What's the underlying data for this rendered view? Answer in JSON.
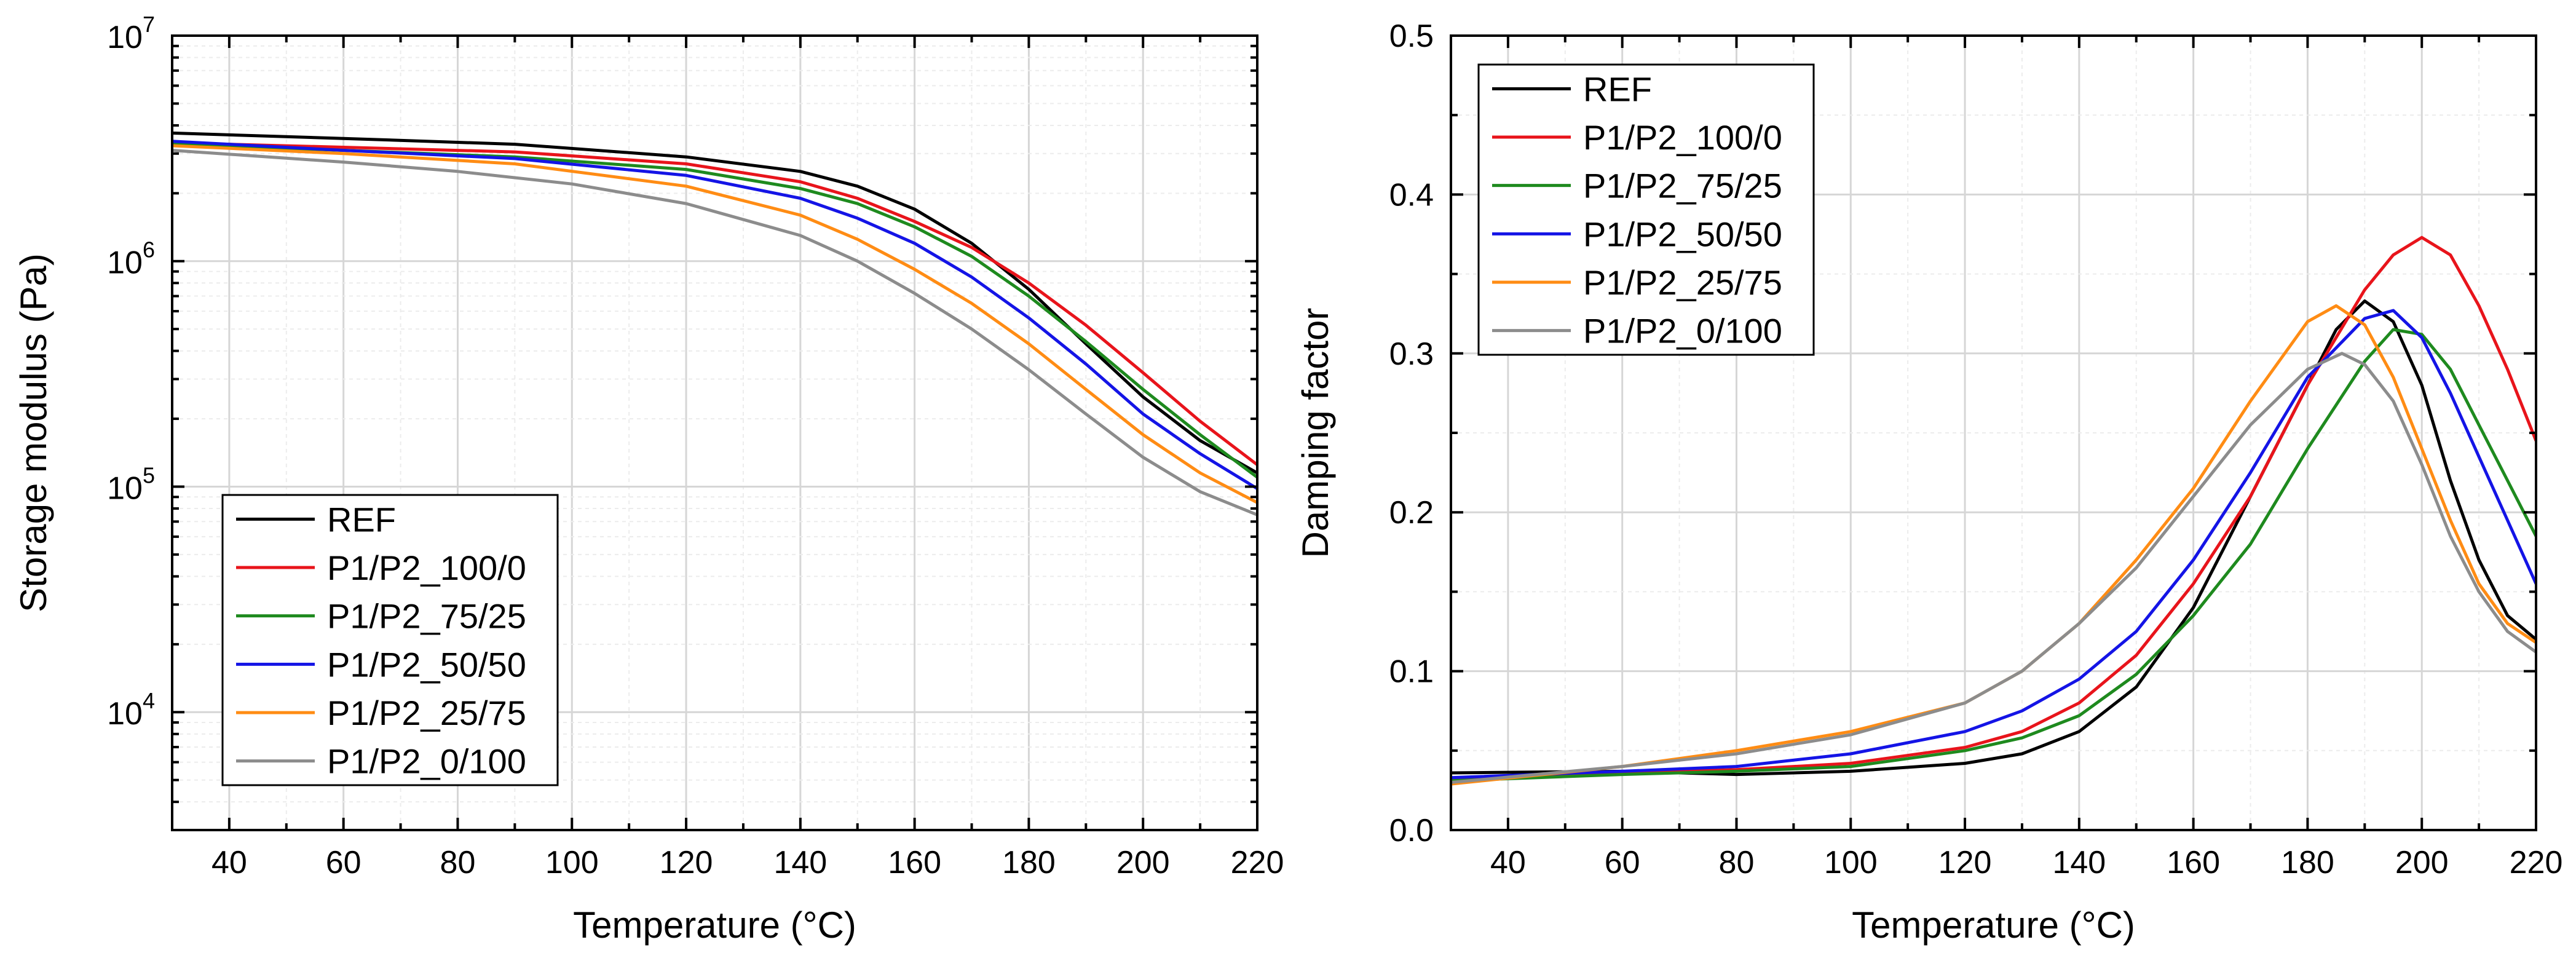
{
  "chart_data": [
    {
      "type": "line",
      "title": "",
      "xlabel": "Temperature (°C)",
      "ylabel": "Storage modulus (Pa)",
      "yscale": "log",
      "xlim": [
        30,
        220
      ],
      "ylim": [
        3000,
        10000000
      ],
      "xticks": [
        40,
        60,
        80,
        100,
        120,
        140,
        160,
        180,
        200,
        220
      ],
      "xtick_labels": [
        "40",
        "60",
        "80",
        "100",
        "120",
        "140",
        "160",
        "180",
        "200",
        "220"
      ],
      "yticks": [
        10000,
        100000,
        1000000,
        10000000
      ],
      "ytick_labels": [
        {
          "base": "10",
          "exp": "4"
        },
        {
          "base": "10",
          "exp": "5"
        },
        {
          "base": "10",
          "exp": "6"
        },
        {
          "base": "10",
          "exp": "7"
        }
      ],
      "grid": true,
      "legend_position": "bottom-left",
      "series": [
        {
          "name": "REF",
          "color": "#000000",
          "x": [
            30,
            60,
            90,
            120,
            140,
            150,
            160,
            170,
            180,
            190,
            200,
            210,
            220
          ],
          "y": [
            3700000,
            3500000,
            3300000,
            2900000,
            2500000,
            2150000,
            1700000,
            1200000,
            750000,
            430000,
            250000,
            160000,
            115000
          ]
        },
        {
          "name": "P1/P2_100/0",
          "color": "#e8141b",
          "x": [
            30,
            60,
            90,
            120,
            140,
            150,
            160,
            170,
            180,
            190,
            200,
            210,
            220
          ],
          "y": [
            3350000,
            3200000,
            3050000,
            2700000,
            2250000,
            1900000,
            1500000,
            1150000,
            800000,
            520000,
            320000,
            195000,
            125000
          ]
        },
        {
          "name": "P1/P2_75/25",
          "color": "#1e8a1e",
          "x": [
            30,
            60,
            90,
            120,
            140,
            150,
            160,
            170,
            180,
            190,
            200,
            210,
            220
          ],
          "y": [
            3300000,
            3100000,
            2900000,
            2550000,
            2100000,
            1800000,
            1420000,
            1050000,
            700000,
            440000,
            270000,
            170000,
            110000
          ]
        },
        {
          "name": "P1/P2_50/50",
          "color": "#1414e6",
          "x": [
            30,
            60,
            90,
            120,
            140,
            150,
            160,
            170,
            180,
            190,
            200,
            210,
            220
          ],
          "y": [
            3400000,
            3100000,
            2850000,
            2400000,
            1900000,
            1550000,
            1200000,
            850000,
            560000,
            350000,
            210000,
            140000,
            98000
          ]
        },
        {
          "name": "P1/P2_25/75",
          "color": "#ff8c14",
          "x": [
            30,
            60,
            90,
            120,
            140,
            150,
            160,
            170,
            180,
            190,
            200,
            210,
            220
          ],
          "y": [
            3250000,
            3000000,
            2700000,
            2150000,
            1600000,
            1250000,
            920000,
            650000,
            430000,
            270000,
            170000,
            115000,
            85000
          ]
        },
        {
          "name": "P1/P2_0/100",
          "color": "#8c8c8c",
          "x": [
            30,
            60,
            80,
            100,
            120,
            140,
            150,
            160,
            170,
            180,
            190,
            200,
            210,
            220
          ],
          "y": [
            3100000,
            2750000,
            2500000,
            2200000,
            1800000,
            1300000,
            1000000,
            720000,
            500000,
            330000,
            210000,
            135000,
            95000,
            75000
          ]
        }
      ]
    },
    {
      "type": "line",
      "title": "",
      "xlabel": "Temperature (°C)",
      "ylabel": "Damping factor",
      "xlim": [
        30,
        220
      ],
      "ylim": [
        0,
        0.5
      ],
      "xticks": [
        40,
        60,
        80,
        100,
        120,
        140,
        160,
        180,
        200,
        220
      ],
      "xtick_labels": [
        "40",
        "60",
        "80",
        "100",
        "120",
        "140",
        "160",
        "180",
        "200",
        "220"
      ],
      "yticks": [
        0.0,
        0.1,
        0.2,
        0.3,
        0.4,
        0.5
      ],
      "ytick_labels": [
        "0.0",
        "0.1",
        "0.2",
        "0.3",
        "0.4",
        "0.5"
      ],
      "grid": true,
      "legend_position": "top-left",
      "series": [
        {
          "name": "REF",
          "color": "#000000",
          "x": [
            30,
            60,
            80,
            100,
            120,
            130,
            140,
            150,
            160,
            170,
            180,
            185,
            190,
            195,
            200,
            205,
            210,
            215,
            220
          ],
          "y": [
            0.036,
            0.037,
            0.035,
            0.037,
            0.042,
            0.048,
            0.062,
            0.09,
            0.14,
            0.21,
            0.28,
            0.315,
            0.333,
            0.32,
            0.28,
            0.22,
            0.17,
            0.135,
            0.12
          ]
        },
        {
          "name": "P1/P2_100/0",
          "color": "#e8141b",
          "x": [
            30,
            60,
            80,
            100,
            120,
            130,
            140,
            150,
            160,
            170,
            180,
            190,
            195,
            200,
            205,
            210,
            215,
            220
          ],
          "y": [
            0.032,
            0.036,
            0.038,
            0.042,
            0.052,
            0.062,
            0.08,
            0.11,
            0.155,
            0.21,
            0.28,
            0.34,
            0.362,
            0.373,
            0.362,
            0.33,
            0.29,
            0.245
          ]
        },
        {
          "name": "P1/P2_75/25",
          "color": "#1e8a1e",
          "x": [
            30,
            60,
            80,
            100,
            120,
            130,
            140,
            150,
            160,
            170,
            180,
            190,
            195,
            200,
            205,
            210,
            215,
            220
          ],
          "y": [
            0.031,
            0.035,
            0.037,
            0.04,
            0.05,
            0.058,
            0.072,
            0.098,
            0.135,
            0.18,
            0.24,
            0.295,
            0.315,
            0.312,
            0.29,
            0.255,
            0.22,
            0.185
          ]
        },
        {
          "name": "P1/P2_50/50",
          "color": "#1414e6",
          "x": [
            30,
            60,
            80,
            100,
            120,
            130,
            140,
            150,
            160,
            170,
            180,
            190,
            195,
            200,
            205,
            210,
            215,
            220
          ],
          "y": [
            0.033,
            0.037,
            0.04,
            0.048,
            0.062,
            0.075,
            0.095,
            0.125,
            0.17,
            0.225,
            0.285,
            0.322,
            0.327,
            0.31,
            0.275,
            0.235,
            0.195,
            0.155
          ]
        },
        {
          "name": "P1/P2_25/75",
          "color": "#ff8c14",
          "x": [
            30,
            60,
            80,
            100,
            120,
            130,
            140,
            150,
            160,
            170,
            180,
            185,
            190,
            195,
            200,
            205,
            210,
            215,
            220
          ],
          "y": [
            0.029,
            0.04,
            0.05,
            0.062,
            0.08,
            0.1,
            0.13,
            0.17,
            0.215,
            0.27,
            0.32,
            0.33,
            0.318,
            0.285,
            0.24,
            0.195,
            0.155,
            0.13,
            0.118
          ]
        },
        {
          "name": "P1/P2_0/100",
          "color": "#8c8c8c",
          "x": [
            30,
            60,
            80,
            100,
            120,
            130,
            140,
            150,
            160,
            170,
            180,
            186,
            190,
            195,
            200,
            205,
            210,
            215,
            220
          ],
          "y": [
            0.03,
            0.04,
            0.048,
            0.06,
            0.08,
            0.1,
            0.13,
            0.165,
            0.21,
            0.255,
            0.29,
            0.3,
            0.293,
            0.27,
            0.23,
            0.185,
            0.15,
            0.125,
            0.112
          ]
        }
      ]
    }
  ]
}
